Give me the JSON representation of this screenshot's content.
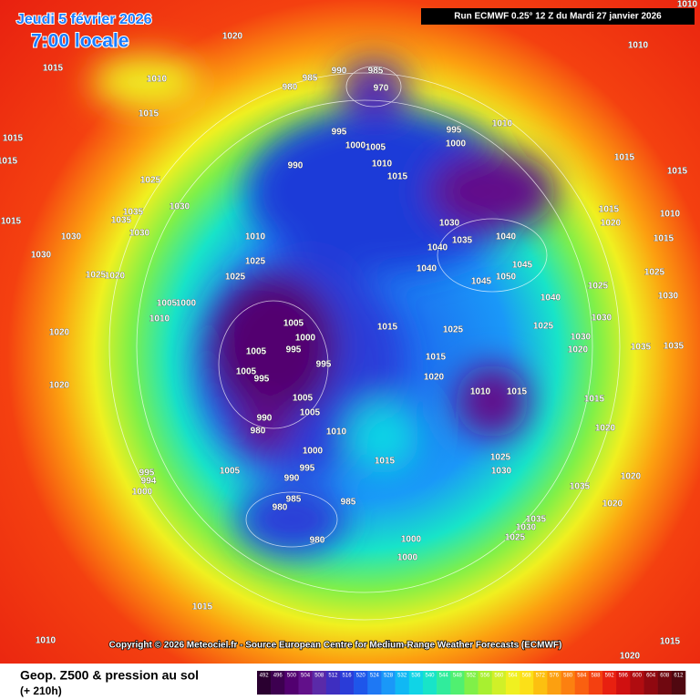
{
  "header": {
    "date": "Jeudi 5 février 2026",
    "time": "7:00 locale",
    "run": "Run ECMWF 0.25° 12 Z du Mardi 27 janvier 2026"
  },
  "copyright": "Copyright © 2026 Meteociel.fr - Source European Centre for Medium-Range Weather Forecasts (ECMWF)",
  "footer": {
    "title": "Geop. Z500 & pression au sol",
    "lead_time": "(+ 210h)"
  },
  "scale": {
    "ticks": [
      492,
      496,
      500,
      504,
      508,
      512,
      516,
      520,
      524,
      528,
      532,
      536,
      540,
      544,
      548,
      552,
      556,
      560,
      564,
      568,
      572,
      576,
      580,
      584,
      588,
      592,
      596,
      600,
      604,
      608,
      612
    ],
    "colors": [
      "#2a0030",
      "#3d0050",
      "#520070",
      "#62108a",
      "#5a2aa8",
      "#3e2ec0",
      "#2a3cd8",
      "#1e56ea",
      "#1e78f4",
      "#1a98f8",
      "#10b8f4",
      "#10d4e6",
      "#18e4c8",
      "#30ec9c",
      "#50f070",
      "#80f048",
      "#a8f030",
      "#d0f028",
      "#f0f020",
      "#fce018",
      "#fcc010",
      "#fca010",
      "#fc8010",
      "#fa6010",
      "#f44010",
      "#e82010",
      "#d01010",
      "#b00c10",
      "#900810",
      "#700810",
      "#500810"
    ]
  },
  "map": {
    "isobar_labels": [
      1020,
      1015,
      1010,
      1015,
      1015,
      1015,
      1025,
      1030,
      1035,
      1035,
      1030,
      1030,
      1015,
      1030,
      1025,
      1020,
      1025,
      1025,
      1010,
      1005,
      1000,
      1010,
      1020,
      1020,
      990,
      985,
      980,
      985,
      970,
      995,
      1000,
      1005,
      990,
      1010,
      1015,
      995,
      1000,
      1010,
      1030,
      1035,
      1040,
      1040,
      1040,
      1045,
      1050,
      1045,
      1025,
      1015,
      1015,
      1010,
      1010,
      1015,
      1015,
      1020,
      1025,
      1030,
      1040,
      1030,
      1025,
      1030,
      1015,
      1025,
      1015,
      1020,
      1005,
      1000,
      995,
      1005,
      1005,
      995,
      995,
      1005,
      1005,
      990,
      980,
      1010,
      1000,
      995,
      990,
      1005,
      995,
      994,
      1000,
      985,
      985,
      980,
      980,
      1015,
      1000,
      1000,
      1010,
      1015,
      1025,
      1030,
      1035,
      1020,
      1020,
      1035,
      1030,
      1025,
      1015,
      1010,
      1015,
      1020,
      1015,
      1020,
      1035,
      1035,
      1020,
      1010
    ]
  }
}
